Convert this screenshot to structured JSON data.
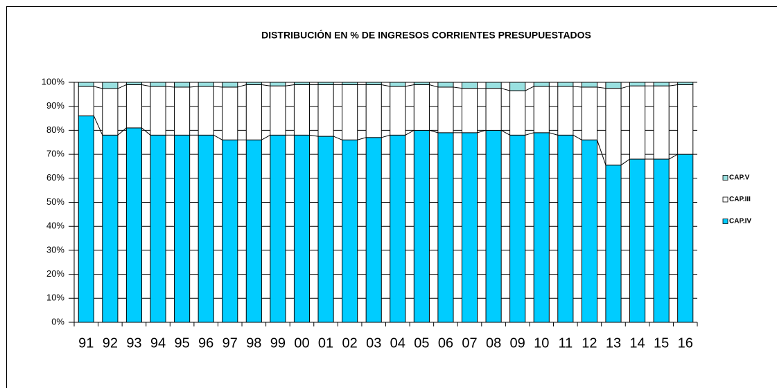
{
  "chart_data": {
    "type": "stacked_bar_percent",
    "title": "DISTRIBUCIÓN  EN % DE INGRESOS CORRIENTES  PRESUPUESTADOS",
    "categories": [
      "91",
      "92",
      "93",
      "94",
      "95",
      "96",
      "97",
      "98",
      "99",
      "00",
      "01",
      "02",
      "03",
      "04",
      "05",
      "06",
      "07",
      "08",
      "09",
      "10",
      "11",
      "12",
      "13",
      "14",
      "15",
      "16"
    ],
    "series": [
      {
        "name": "CAP.IV",
        "color": "#00ccff",
        "values": [
          86,
          78,
          81,
          78,
          78,
          78,
          76,
          76,
          78,
          78,
          77.5,
          76,
          77,
          78,
          80,
          79,
          79,
          80,
          78,
          79,
          78,
          76,
          65.5,
          68,
          68,
          70
        ]
      },
      {
        "name": "CAP.III",
        "color": "#ffffff",
        "values": [
          12.3,
          19.4,
          18,
          20.3,
          20,
          20.3,
          22,
          23,
          20.5,
          21,
          21.5,
          23,
          22,
          20.3,
          19,
          19,
          18.5,
          17.5,
          18.5,
          19.3,
          20.3,
          22,
          32,
          30.5,
          30.5,
          29
        ]
      },
      {
        "name": "CAP.V",
        "color": "#99e0e0",
        "values": [
          1.7,
          2.6,
          1,
          1.7,
          2,
          1.7,
          2,
          1,
          1.5,
          1,
          1,
          1,
          1,
          1.7,
          1,
          2,
          2.5,
          2.5,
          3.5,
          1.7,
          1.7,
          2,
          2.5,
          1.5,
          1.5,
          1
        ]
      }
    ],
    "ylim": [
      0,
      100
    ],
    "yticks": [
      {
        "value": 0,
        "label": "0%"
      },
      {
        "value": 10,
        "label": "10%"
      },
      {
        "value": 20,
        "label": "20%"
      },
      {
        "value": 30,
        "label": "30%"
      },
      {
        "value": 40,
        "label": "40%"
      },
      {
        "value": 50,
        "label": "50%"
      },
      {
        "value": 60,
        "label": "60%"
      },
      {
        "value": 70,
        "label": "70%"
      },
      {
        "value": 80,
        "label": "80%"
      },
      {
        "value": 90,
        "label": "90%"
      },
      {
        "value": 100,
        "label": "100%"
      }
    ],
    "grid": true,
    "legend": "right"
  }
}
